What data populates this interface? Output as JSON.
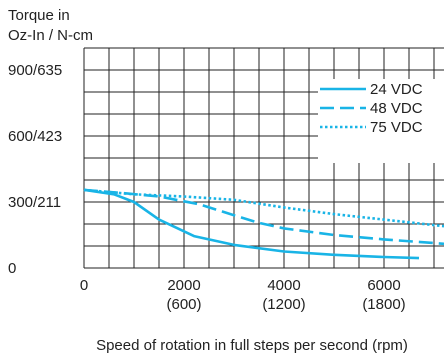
{
  "chart_data": {
    "type": "line",
    "ylabel_lines": [
      "Torque in",
      "Oz-In / N-cm"
    ],
    "xlabel": "Speed of rotation in full steps per second (rpm)",
    "xlim": [
      0,
      7200
    ],
    "ylim": [
      0,
      1000
    ],
    "grid": true,
    "x_ticks": [
      {
        "value": 0,
        "label": "0",
        "sub": ""
      },
      {
        "value": 2000,
        "label": "2000",
        "sub": "(600)"
      },
      {
        "value": 4000,
        "label": "4000",
        "sub": "(1200)"
      },
      {
        "value": 6000,
        "label": "6000",
        "sub": "(1800)"
      }
    ],
    "y_ticks": [
      {
        "value": 0,
        "label": "0"
      },
      {
        "value": 300,
        "label": "300/211"
      },
      {
        "value": 600,
        "label": "600/423"
      },
      {
        "value": 900,
        "label": "900/635"
      }
    ],
    "legend_position": "top-right",
    "series": [
      {
        "name": "24 VDC",
        "color": "#19b4e6",
        "dash": "solid",
        "x": [
          0,
          600,
          1000,
          1500,
          2200,
          3000,
          4000,
          5000,
          6000,
          6700
        ],
        "y": [
          355,
          335,
          300,
          220,
          145,
          105,
          75,
          60,
          50,
          45
        ]
      },
      {
        "name": "48 VDC",
        "color": "#19b4e6",
        "dash": "dashed",
        "x": [
          0,
          800,
          1500,
          2300,
          3000,
          3500,
          4000,
          5000,
          6000,
          7200
        ],
        "y": [
          355,
          340,
          325,
          290,
          240,
          205,
          180,
          150,
          130,
          110
        ]
      },
      {
        "name": "75 VDC",
        "color": "#19b4e6",
        "dash": "dotted",
        "x": [
          0,
          1000,
          2000,
          3000,
          4000,
          5000,
          6000,
          7200
        ],
        "y": [
          355,
          335,
          325,
          310,
          275,
          245,
          220,
          190
        ]
      }
    ]
  }
}
